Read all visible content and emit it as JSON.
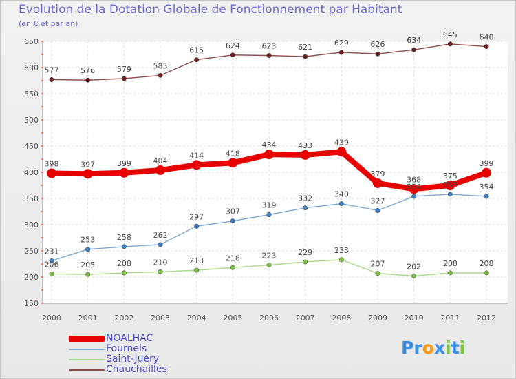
{
  "title": "Evolution de la Dotation Globale de Fonctionnement par Habitant",
  "subtitle": "(en € et par an)",
  "logo": {
    "p1": "Pr",
    "o": "o",
    "x": "x",
    "i": "i",
    "t": "t",
    "i2": "i"
  },
  "chart_data": {
    "type": "line",
    "title": "Evolution de la Dotation Globale de Fonctionnement par Habitant",
    "ylabel": "(en € et par an)",
    "xlabel": "",
    "ylim": [
      150,
      650
    ],
    "yticks": [
      150,
      200,
      250,
      300,
      350,
      400,
      450,
      500,
      550,
      600,
      650
    ],
    "grid": true,
    "x": [
      "2000",
      "2001",
      "2002",
      "2003",
      "2004",
      "2005",
      "2006",
      "2007",
      "2008",
      "2009",
      "2010",
      "2011",
      "2012"
    ],
    "series": [
      {
        "name": "NOALHAC",
        "color": "#e60000",
        "markerColor": "#e60000",
        "values": [
          398,
          397,
          399,
          404,
          414,
          418,
          434,
          433,
          439,
          379,
          368,
          375,
          399
        ]
      },
      {
        "name": "Fournels",
        "color": "#7ea8d6",
        "markerColor": "#3d7fc4",
        "values": [
          231,
          253,
          258,
          262,
          297,
          307,
          319,
          332,
          340,
          327,
          354,
          358,
          354
        ]
      },
      {
        "name": "Saint-Juéry",
        "color": "#a8d88a",
        "markerColor": "#7cc242",
        "values": [
          206,
          205,
          208,
          210,
          213,
          218,
          223,
          229,
          233,
          207,
          202,
          208,
          208
        ]
      },
      {
        "name": "Chauchailles",
        "color": "#8c4a4a",
        "markerColor": "#6b1f1f",
        "values": [
          577,
          576,
          579,
          585,
          615,
          624,
          623,
          621,
          629,
          626,
          634,
          645,
          640
        ]
      }
    ],
    "legend_position": "bottom-left"
  }
}
